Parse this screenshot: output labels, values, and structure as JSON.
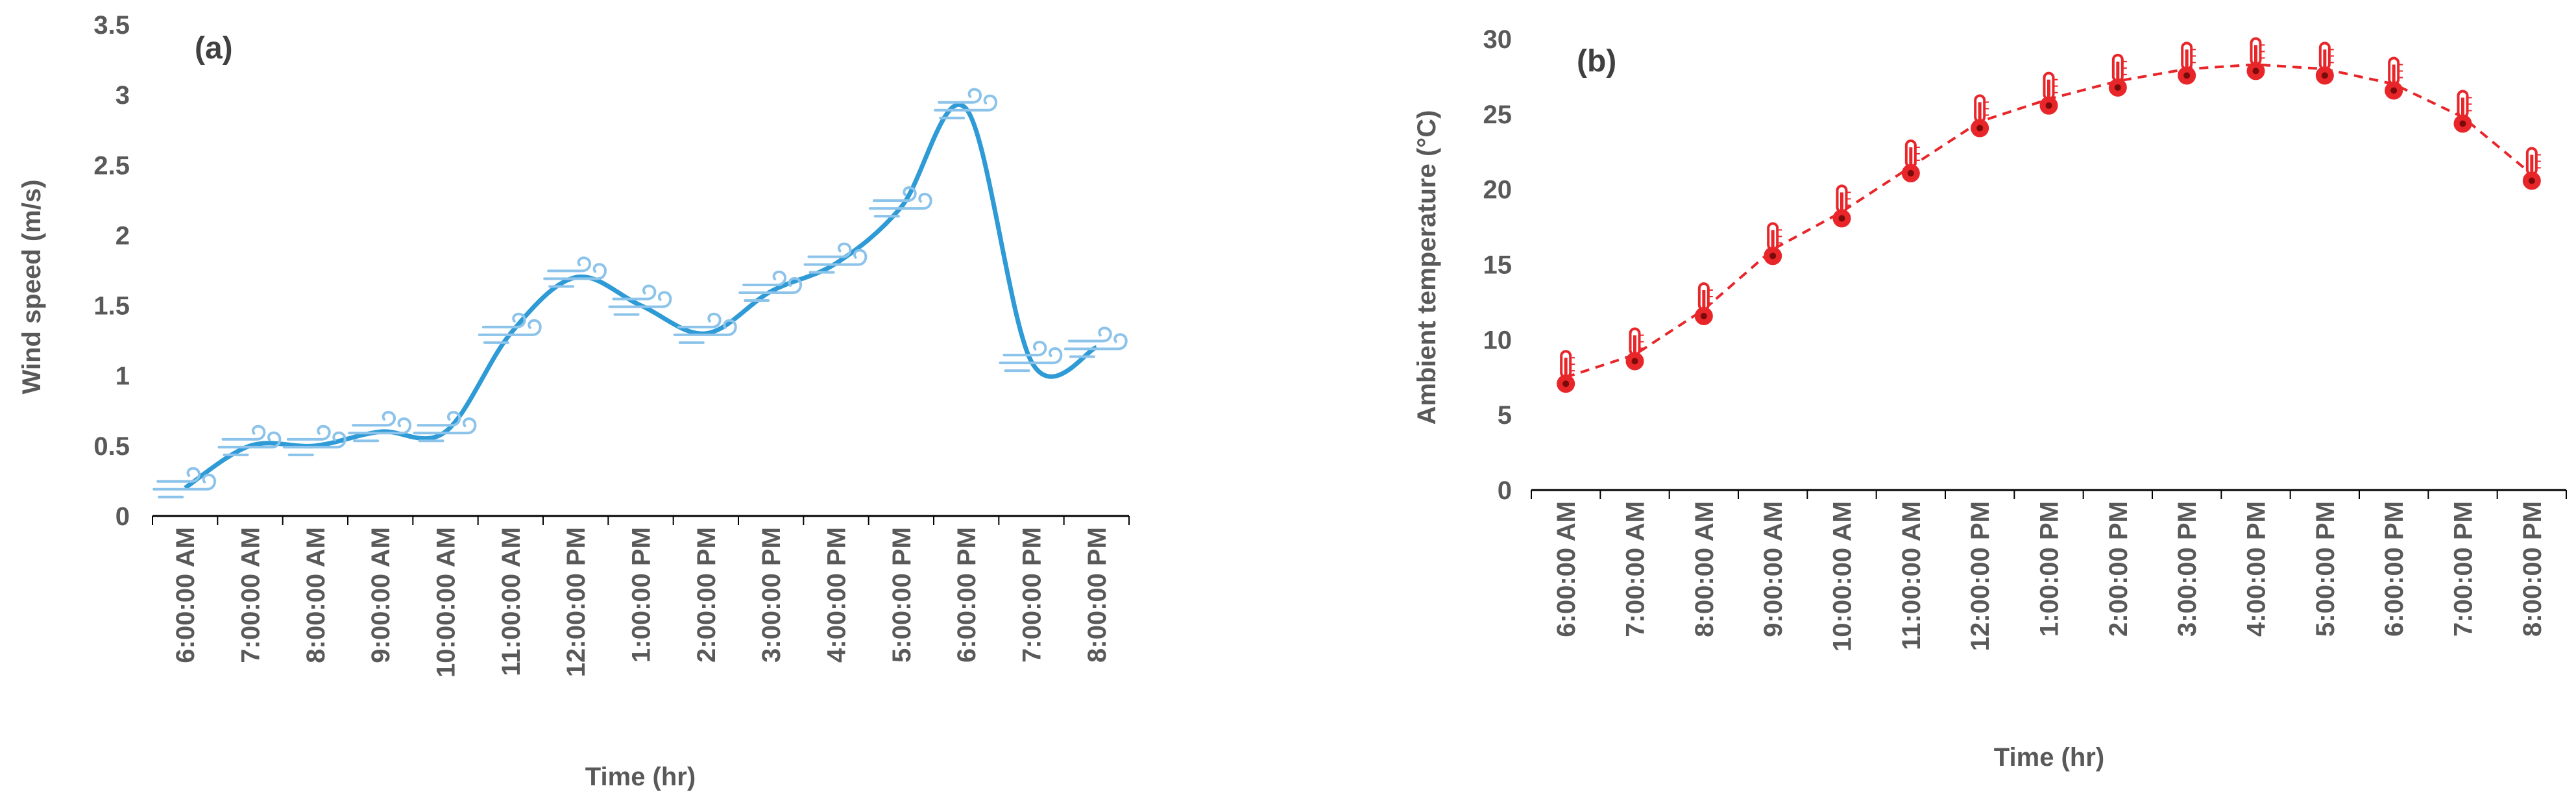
{
  "chart_data": [
    {
      "type": "line",
      "panel_label": "(a)",
      "title": "",
      "xlabel": "Time (hr)",
      "ylabel": "Wind speed (m/s)",
      "ylim": [
        0,
        3.5
      ],
      "yticks": [
        "0",
        "0.5",
        "1",
        "1.5",
        "2",
        "2.5",
        "3",
        "3.5"
      ],
      "categories": [
        "6:00:00 AM",
        "7:00:00 AM",
        "8:00:00 AM",
        "9:00:00 AM",
        "10:00:00 AM",
        "11:00:00 AM",
        "12:00:00 PM",
        "1:00:00 PM",
        "2:00:00 PM",
        "3:00:00 PM",
        "4:00:00 PM",
        "5:00:00 PM",
        "6:00:00 PM",
        "7:00:00 PM",
        "8:00:00 PM"
      ],
      "series": [
        {
          "name": "Wind speed",
          "values": [
            0.2,
            0.5,
            0.5,
            0.6,
            0.6,
            1.3,
            1.7,
            1.5,
            1.3,
            1.6,
            1.8,
            2.2,
            2.9,
            1.1,
            1.2
          ],
          "color": "#2E9AD6",
          "marker": "wind"
        }
      ],
      "grid": false,
      "smooth": true
    },
    {
      "type": "line",
      "panel_label": "(b)",
      "title": "",
      "xlabel": "Time (hr)",
      "ylabel": "Ambient temperature (°C)",
      "ylim": [
        0,
        30
      ],
      "yticks": [
        "0",
        "5",
        "10",
        "15",
        "20",
        "25",
        "30"
      ],
      "categories": [
        "6:00:00 AM",
        "7:00:00 AM",
        "8:00:00 AM",
        "9:00:00 AM",
        "10:00:00 AM",
        "11:00:00 AM",
        "12:00:00 PM",
        "1:00:00 PM",
        "2:00:00 PM",
        "3:00:00 PM",
        "4:00:00 PM",
        "5:00:00 PM",
        "6:00:00 PM",
        "7:00:00 PM",
        "8:00:00 PM"
      ],
      "series": [
        {
          "name": "Ambient temperature",
          "values": [
            7.5,
            9,
            12,
            16,
            18.5,
            21.5,
            24.5,
            26,
            27.2,
            28,
            28.3,
            28,
            27,
            24.8,
            21
          ],
          "color": "#E8262A",
          "marker": "thermometer",
          "dashed": true
        }
      ],
      "grid": false,
      "smooth": false
    }
  ]
}
